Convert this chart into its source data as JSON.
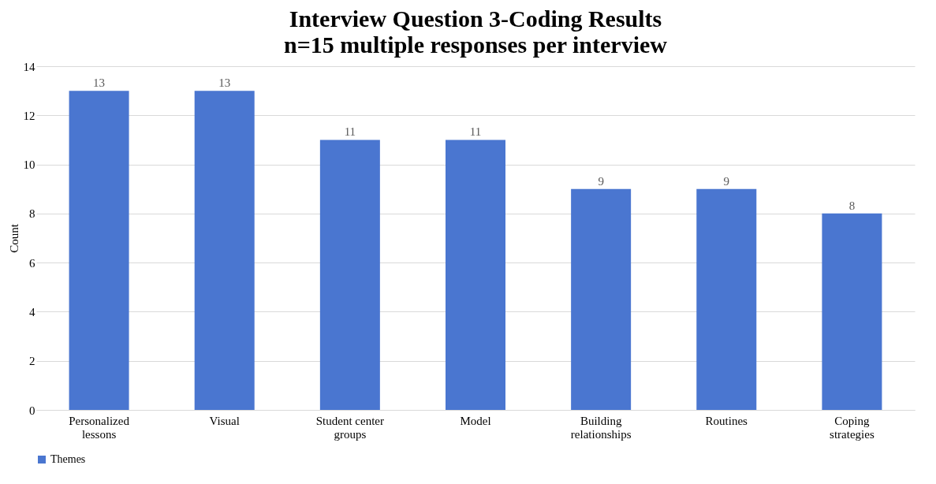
{
  "chart_data": {
    "type": "bar",
    "title": "Interview Question 3-Coding Results",
    "subtitle": "n=15 multiple responses per interview",
    "ylabel": "Count",
    "categories": [
      "Personalized lessons",
      "Visual",
      "Student center groups",
      "Model",
      "Building relationships",
      "Routines",
      "Coping strategies"
    ],
    "series": [
      {
        "name": "Themes",
        "color": "#4a76d0",
        "values": [
          13,
          13,
          11,
          11,
          9,
          9,
          8
        ]
      }
    ],
    "ylim": [
      0,
      14
    ],
    "yticks": [
      0,
      2,
      4,
      6,
      8,
      10,
      12,
      14
    ],
    "grid": "y",
    "legend": "bottom",
    "data_labels": true
  }
}
